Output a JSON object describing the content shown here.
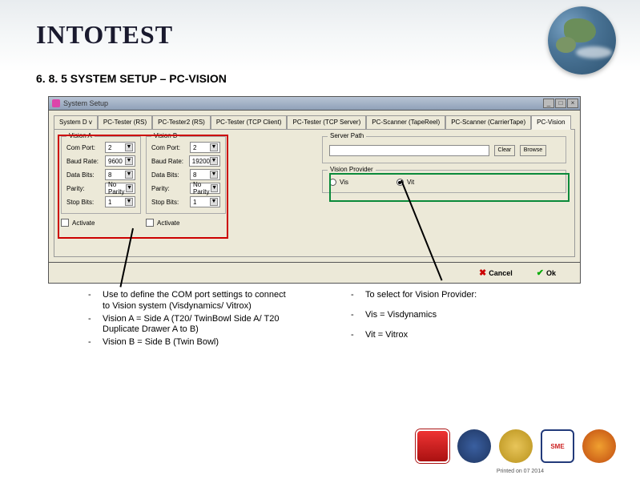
{
  "logo": "INTOTEST",
  "section_title": "6. 8. 5 SYSTEM SETUP – PC-VISION",
  "dialog": {
    "title": "System Setup",
    "tabs": [
      "System D v",
      "PC-Tester (RS)",
      "PC-Tester2 (RS)",
      "PC-Tester (TCP Client)",
      "PC-Tester (TCP Server)",
      "PC-Scanner (TapeReel)",
      "PC-Scanner (CarrierTape)",
      "PC-Vision"
    ],
    "active_tab_index": 7,
    "vision_a": {
      "title": "Vision A",
      "com_port_label": "Com Port:",
      "com_port_value": "2",
      "baud_rate_label": "Baud Rate:",
      "baud_rate_value": "9600",
      "data_bits_label": "Data Bits:",
      "data_bits_value": "8",
      "parity_label": "Parity:",
      "parity_value": "No Parity",
      "stop_bits_label": "Stop Bits:",
      "stop_bits_value": "1",
      "activate_label": "Activate"
    },
    "vision_b": {
      "title": "Vision B",
      "com_port_label": "Com Port:",
      "com_port_value": "2",
      "baud_rate_label": "Baud Rate:",
      "baud_rate_value": "19200",
      "data_bits_label": "Data Bits:",
      "data_bits_value": "8",
      "parity_label": "Parity:",
      "parity_value": "No Parity",
      "stop_bits_label": "Stop Bits:",
      "stop_bits_value": "1",
      "activate_label": "Activate"
    },
    "server_path": {
      "title": "Server Path",
      "clear_label": "Clear",
      "browse_label": "Browse"
    },
    "vision_provider": {
      "title": "Vision Provider",
      "opt1": "Vis",
      "opt2": "Vit",
      "selected": 1
    },
    "cancel_label": "Cancel",
    "ok_label": "Ok"
  },
  "left_bullets": [
    "Use to define the COM port settings to connect to Vision system (Visdynamics/ Vitrox)",
    "Vision A = Side A (T20/ TwinBowl Side A/ T20 Duplicate Drawer A to B)",
    "Vision B = Side B (Twin Bowl)"
  ],
  "right_bullets": [
    "To select for Vision Provider:",
    "Vis = Visdynamics",
    "Vit = Vitrox"
  ],
  "badge4_text": "SME",
  "footer_text": "Printed on 07    2014"
}
